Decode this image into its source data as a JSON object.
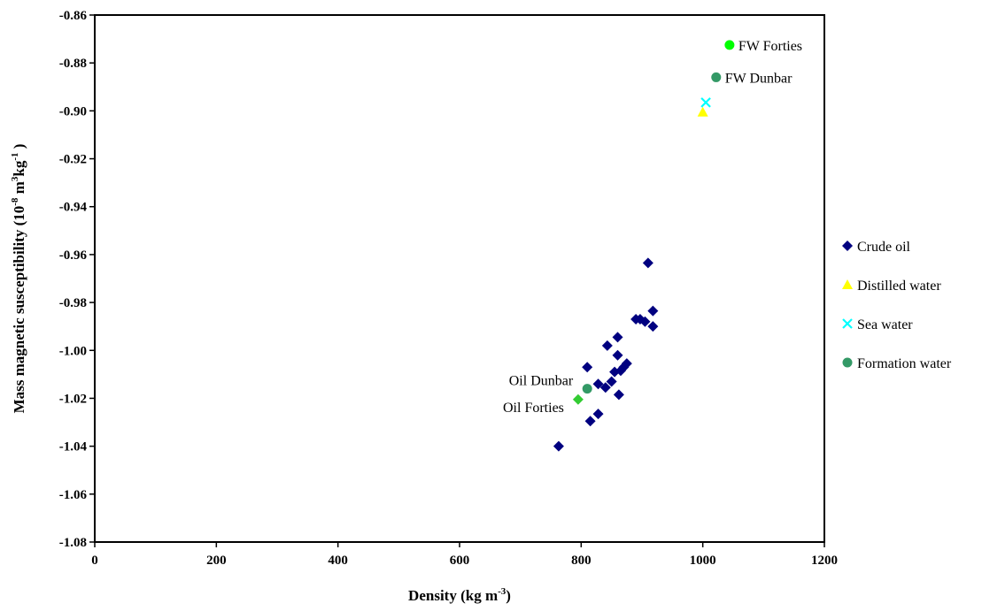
{
  "chart_data": {
    "type": "scatter",
    "xlabel": "Density (kg m",
    "xlabel_sup": "-3",
    "xlabel_end": ")",
    "ylabel": "Mass magnetic susceptibility (10",
    "ylabel_sup1": "-8",
    "ylabel_mid1": " m",
    "ylabel_sup2": "3",
    "ylabel_mid2": "kg",
    "ylabel_sup3": "-1",
    "ylabel_end": " )",
    "xlim": [
      0,
      1200
    ],
    "ylim": [
      -1.08,
      -0.86
    ],
    "x_ticks": [
      0,
      200,
      400,
      600,
      800,
      1000,
      1200
    ],
    "y_ticks": [
      -0.86,
      -0.88,
      -0.9,
      -0.92,
      -0.94,
      -0.96,
      -0.98,
      -1.0,
      -1.02,
      -1.04,
      -1.06,
      -1.08
    ],
    "x_tick_labels": [
      "0",
      "200",
      "400",
      "600",
      "800",
      "1000",
      "1200"
    ],
    "y_tick_labels": [
      "-0.86",
      "-0.88",
      "-0.90",
      "-0.92",
      "-0.94",
      "-0.96",
      "-0.98",
      "-1.00",
      "-1.02",
      "-1.04",
      "-1.06",
      "-1.08"
    ],
    "grid": false,
    "legend_position": "right",
    "series": [
      {
        "name": "Crude oil",
        "marker": "diamond",
        "color": "#000080",
        "points": [
          [
            763,
            -1.04
          ],
          [
            810,
            -1.007
          ],
          [
            815,
            -1.0295
          ],
          [
            828,
            -1.0265
          ],
          [
            828,
            -1.014
          ],
          [
            840,
            -1.0155
          ],
          [
            843,
            -0.998
          ],
          [
            850,
            -1.013
          ],
          [
            855,
            -1.009
          ],
          [
            860,
            -1.002
          ],
          [
            860,
            -0.9945
          ],
          [
            862,
            -1.0185
          ],
          [
            865,
            -1.0085
          ],
          [
            870,
            -1.007
          ],
          [
            875,
            -1.0055
          ],
          [
            890,
            -0.987
          ],
          [
            897,
            -0.987
          ],
          [
            905,
            -0.988
          ],
          [
            910,
            -0.9635
          ],
          [
            918,
            -0.9835
          ],
          [
            918,
            -0.99
          ]
        ]
      },
      {
        "name": "Distilled water",
        "marker": "triangle",
        "color": "#ffff00",
        "points": [
          [
            1000,
            -0.9005
          ]
        ]
      },
      {
        "name": "Sea water",
        "marker": "cross",
        "color": "#00ffff",
        "points": [
          [
            1005,
            -0.8965
          ]
        ]
      },
      {
        "name": "Formation water",
        "marker": "circle",
        "color": "#339966",
        "points": [
          [
            1022,
            -0.886
          ],
          [
            810,
            -1.016
          ]
        ]
      }
    ],
    "highlighted_points": [
      {
        "label": "FW Forties",
        "x": 1044,
        "y": -0.8725,
        "marker": "circle",
        "color": "#00ff00"
      },
      {
        "label": "Oil Forties",
        "x": 795,
        "y": -1.0205,
        "marker": "diamond",
        "color": "#33cc33"
      }
    ],
    "annotations": [
      {
        "text": "FW Forties",
        "x": 1044,
        "y": -0.8725,
        "anchor": "right"
      },
      {
        "text": "FW Dunbar",
        "x": 1022,
        "y": -0.886,
        "anchor": "right"
      },
      {
        "text": "Oil Dunbar",
        "x": 810,
        "y": -1.016,
        "anchor": "left-above"
      },
      {
        "text": "Oil Forties",
        "x": 795,
        "y": -1.0205,
        "anchor": "left-below"
      }
    ]
  }
}
